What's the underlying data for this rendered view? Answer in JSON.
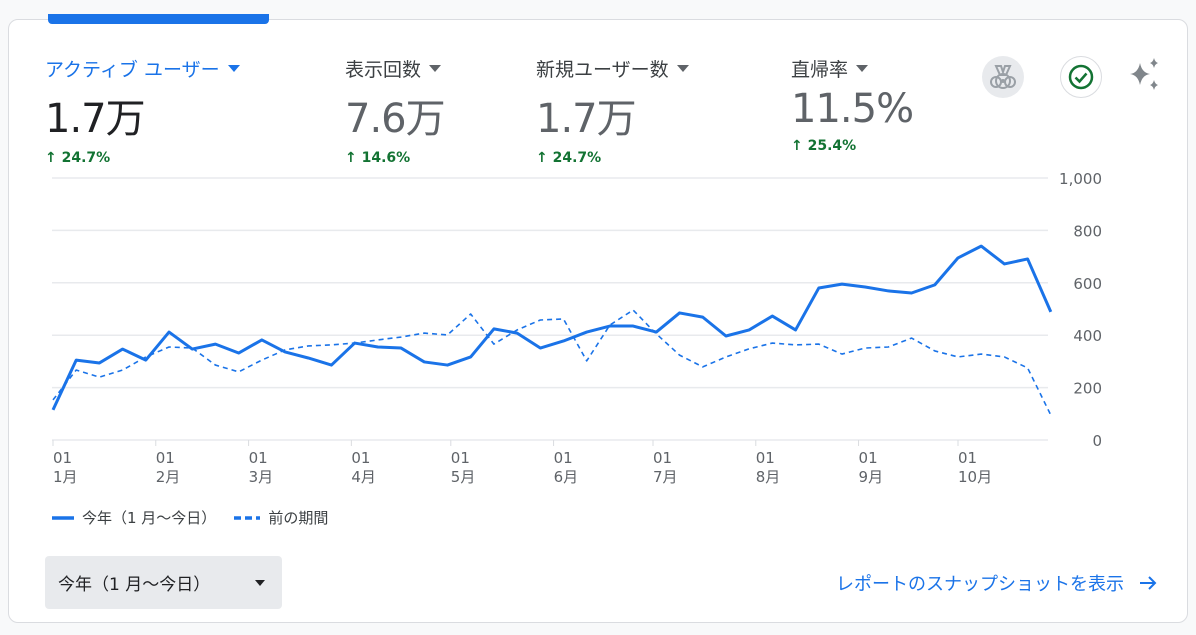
{
  "metrics": [
    {
      "label": "アクティブ ユーザー",
      "value": "1.7万",
      "change": "24.7%",
      "active": true
    },
    {
      "label": "表示回数",
      "value": "7.6万",
      "change": "14.6%",
      "active": false
    },
    {
      "label": "新規ユーザー数",
      "value": "1.7万",
      "change": "24.7%",
      "active": false
    },
    {
      "label": "直帰率",
      "value": "11.5%",
      "change": "25.4%",
      "active": false
    }
  ],
  "icons": [
    "medal-icon",
    "check-circle-icon",
    "sparkle-icon"
  ],
  "colors": {
    "accent": "#1a73e8",
    "positive": "#137333"
  },
  "chart_data": {
    "type": "line",
    "ylim": [
      0,
      1000
    ],
    "yticks": [
      "0",
      "200",
      "400",
      "600",
      "800",
      "1,000"
    ],
    "xticks": [
      {
        "day": "01",
        "month": "1月",
        "date": "01-01"
      },
      {
        "day": "01",
        "month": "2月",
        "date": "02-01"
      },
      {
        "day": "01",
        "month": "3月",
        "date": "03-01"
      },
      {
        "day": "01",
        "month": "4月",
        "date": "04-01"
      },
      {
        "day": "01",
        "month": "5月",
        "date": "05-01"
      },
      {
        "day": "01",
        "month": "6月",
        "date": "06-01"
      },
      {
        "day": "01",
        "month": "7月",
        "date": "07-01"
      },
      {
        "day": "01",
        "month": "8月",
        "date": "08-01"
      },
      {
        "day": "01",
        "month": "9月",
        "date": "09-01"
      },
      {
        "day": "01",
        "month": "10月",
        "date": "10-01"
      }
    ],
    "x": [
      "01-01",
      "01-08",
      "01-15",
      "01-22",
      "01-29",
      "02-05",
      "02-12",
      "02-19",
      "02-26",
      "03-05",
      "03-12",
      "03-19",
      "03-26",
      "04-02",
      "04-09",
      "04-16",
      "04-23",
      "04-30",
      "05-07",
      "05-14",
      "05-21",
      "05-28",
      "06-04",
      "06-11",
      "06-18",
      "06-25",
      "07-02",
      "07-09",
      "07-16",
      "07-23",
      "07-30",
      "08-06",
      "08-13",
      "08-20",
      "08-27",
      "09-03",
      "09-10",
      "09-17",
      "09-24",
      "10-01",
      "10-08",
      "10-15",
      "10-22",
      "10-29"
    ],
    "grid": true,
    "legend_position": "bottom-left",
    "series": [
      {
        "name": "今年（1 月〜今日）",
        "style": "solid",
        "values": [
          115,
          305,
          294,
          347,
          305,
          412,
          347,
          366,
          332,
          382,
          336,
          313,
          286,
          370,
          355,
          351,
          298,
          286,
          317,
          424,
          408,
          351,
          378,
          412,
          435,
          435,
          412,
          485,
          469,
          397,
          420,
          473,
          420,
          580,
          595,
          584,
          569,
          561,
          592,
          695,
          740,
          672,
          691,
          489
        ]
      },
      {
        "name": "前の期間",
        "style": "dashed",
        "values": [
          153,
          267,
          240,
          267,
          317,
          355,
          351,
          286,
          260,
          305,
          344,
          359,
          363,
          370,
          382,
          393,
          408,
          401,
          481,
          366,
          420,
          458,
          462,
          302,
          439,
          496,
          405,
          324,
          279,
          317,
          348,
          370,
          363,
          366,
          328,
          351,
          355,
          389,
          340,
          317,
          328,
          317,
          275,
          95
        ]
      }
    ]
  },
  "date_range": "今年（1 月〜今日）",
  "snapshot_link": "レポートのスナップショットを表示"
}
